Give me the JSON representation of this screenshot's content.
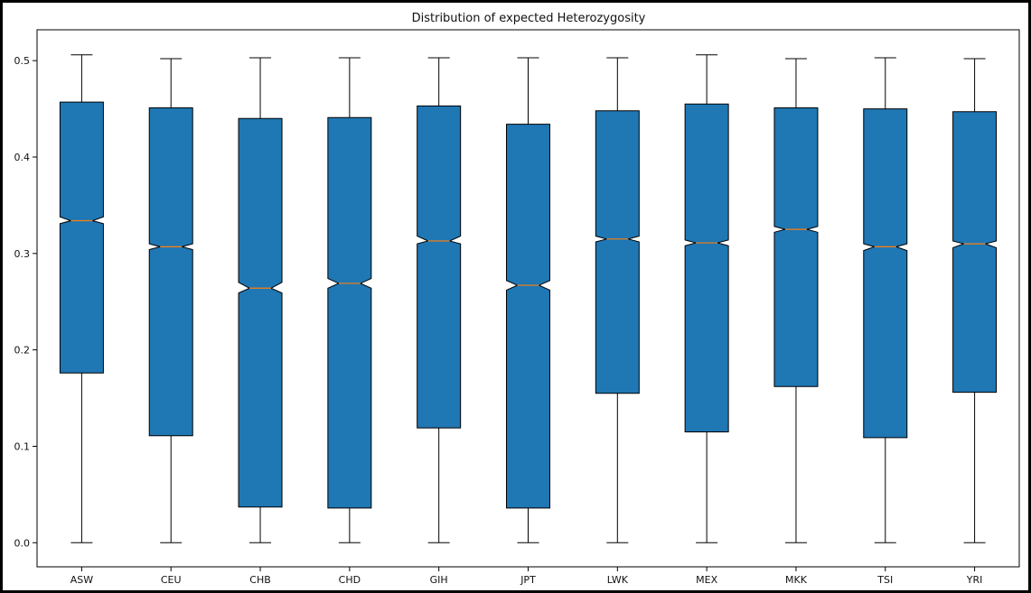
{
  "chart_data": {
    "type": "box",
    "title": "Distribution of expected Heterozygosity",
    "xlabel": "",
    "ylabel": "",
    "ylim": [
      -0.025,
      0.532
    ],
    "yticks": [
      0.0,
      0.1,
      0.2,
      0.3,
      0.4,
      0.5
    ],
    "ytick_labels": [
      "0.0",
      "0.1",
      "0.2",
      "0.3",
      "0.4",
      "0.5"
    ],
    "notched": true,
    "box_color": "#1f77b4",
    "median_color": "#ff7f0e",
    "categories": [
      "ASW",
      "CEU",
      "CHB",
      "CHD",
      "GIH",
      "JPT",
      "LWK",
      "MEX",
      "MKK",
      "TSI",
      "YRI"
    ],
    "boxes": [
      {
        "label": "ASW",
        "whisker_low": 0.0,
        "q1": 0.176,
        "median": 0.334,
        "q3": 0.457,
        "whisker_high": 0.506,
        "notch_low": 0.331,
        "notch_high": 0.338
      },
      {
        "label": "CEU",
        "whisker_low": 0.0,
        "q1": 0.111,
        "median": 0.307,
        "q3": 0.451,
        "whisker_high": 0.502,
        "notch_low": 0.304,
        "notch_high": 0.31
      },
      {
        "label": "CHB",
        "whisker_low": 0.0,
        "q1": 0.037,
        "median": 0.264,
        "q3": 0.44,
        "whisker_high": 0.503,
        "notch_low": 0.259,
        "notch_high": 0.27
      },
      {
        "label": "CHD",
        "whisker_low": 0.0,
        "q1": 0.036,
        "median": 0.269,
        "q3": 0.441,
        "whisker_high": 0.503,
        "notch_low": 0.264,
        "notch_high": 0.274
      },
      {
        "label": "GIH",
        "whisker_low": 0.0,
        "q1": 0.119,
        "median": 0.313,
        "q3": 0.453,
        "whisker_high": 0.503,
        "notch_low": 0.31,
        "notch_high": 0.318
      },
      {
        "label": "JPT",
        "whisker_low": 0.0,
        "q1": 0.036,
        "median": 0.267,
        "q3": 0.434,
        "whisker_high": 0.503,
        "notch_low": 0.262,
        "notch_high": 0.272
      },
      {
        "label": "LWK",
        "whisker_low": 0.0,
        "q1": 0.155,
        "median": 0.315,
        "q3": 0.448,
        "whisker_high": 0.503,
        "notch_low": 0.312,
        "notch_high": 0.318
      },
      {
        "label": "MEX",
        "whisker_low": 0.0,
        "q1": 0.115,
        "median": 0.311,
        "q3": 0.455,
        "whisker_high": 0.506,
        "notch_low": 0.308,
        "notch_high": 0.314
      },
      {
        "label": "MKK",
        "whisker_low": 0.0,
        "q1": 0.162,
        "median": 0.325,
        "q3": 0.451,
        "whisker_high": 0.502,
        "notch_low": 0.322,
        "notch_high": 0.328
      },
      {
        "label": "TSI",
        "whisker_low": 0.0,
        "q1": 0.109,
        "median": 0.307,
        "q3": 0.45,
        "whisker_high": 0.503,
        "notch_low": 0.303,
        "notch_high": 0.31
      },
      {
        "label": "YRI",
        "whisker_low": 0.0,
        "q1": 0.156,
        "median": 0.31,
        "q3": 0.447,
        "whisker_high": 0.502,
        "notch_low": 0.306,
        "notch_high": 0.313
      }
    ]
  }
}
